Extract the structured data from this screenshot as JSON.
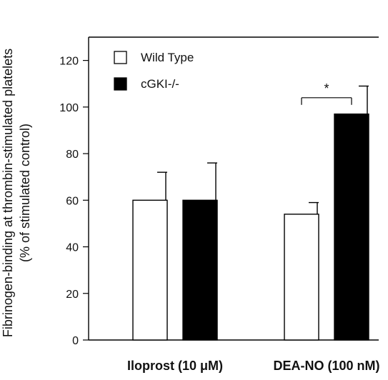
{
  "chart_data": {
    "type": "bar",
    "title": "",
    "xlabel": "",
    "ylabel_lines": [
      "Fibrinogen-binding at thrombin-stimulated platelets",
      "(% of stimulated control)"
    ],
    "ylim": [
      0,
      130
    ],
    "yticks": [
      0,
      20,
      40,
      60,
      80,
      100,
      120
    ],
    "categories": [
      "Iloprost (10 μM)",
      "DEA-NO (100 nM)"
    ],
    "series": [
      {
        "name": "Wild Type",
        "fill": "#ffffff",
        "values": [
          60,
          54
        ],
        "errors": [
          12,
          5
        ]
      },
      {
        "name": "cGKI-/-",
        "fill": "#000000",
        "values": [
          60,
          97
        ],
        "errors": [
          16,
          12
        ]
      }
    ],
    "annotations": [
      {
        "text": "*",
        "category_index": 1,
        "y": 104
      }
    ],
    "legend_position": "top-left",
    "grid": false
  }
}
